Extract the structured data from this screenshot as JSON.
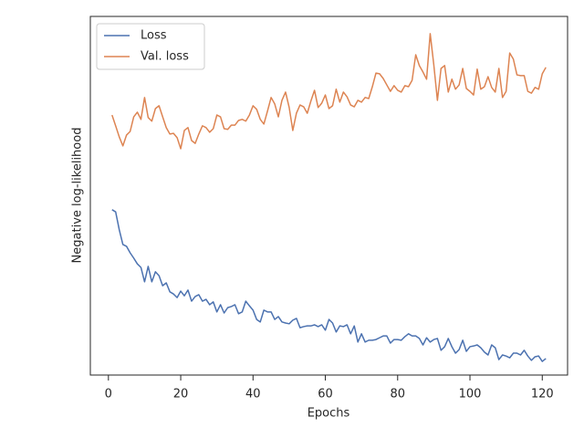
{
  "chart_data": {
    "type": "line",
    "x_label": "Epochs",
    "y_label": "Negative log-likelihood",
    "x": [
      1,
      2,
      3,
      4,
      5,
      6,
      7,
      8,
      9,
      10,
      11,
      12,
      13,
      14,
      15,
      16,
      17,
      18,
      19,
      20,
      21,
      22,
      23,
      24,
      25,
      26,
      27,
      28,
      29,
      30,
      31,
      32,
      33,
      34,
      35,
      36,
      37,
      38,
      39,
      40,
      41,
      42,
      43,
      44,
      45,
      46,
      47,
      48,
      49,
      50,
      51,
      52,
      53,
      54,
      55,
      56,
      57,
      58,
      59,
      60,
      61,
      62,
      63,
      64,
      65,
      66,
      67,
      68,
      69,
      70,
      71,
      72,
      73,
      74,
      75,
      76,
      77,
      78,
      79,
      80,
      81,
      82,
      83,
      84,
      85,
      86,
      87,
      88,
      89,
      90,
      91,
      92,
      93,
      94,
      95,
      96,
      97,
      98,
      99,
      100,
      101,
      102,
      103,
      104,
      105,
      106,
      107,
      108,
      109,
      110,
      111,
      112,
      113,
      114,
      115,
      116,
      117,
      118,
      119,
      120,
      121
    ],
    "series": [
      {
        "name": "Loss",
        "color": "#4c72b0",
        "values": [
          46.1,
          45.5,
          40.5,
          36.4,
          35.9,
          34.1,
          32.6,
          31.0,
          30.0,
          26.0,
          30.3,
          26.0,
          28.8,
          27.7,
          24.9,
          25.7,
          23.2,
          22.6,
          21.6,
          23.4,
          22.1,
          23.7,
          20.6,
          21.9,
          22.4,
          20.6,
          21.1,
          19.6,
          20.4,
          17.6,
          19.6,
          17.3,
          18.8,
          19.1,
          19.6,
          17.1,
          17.6,
          20.6,
          19.3,
          18.1,
          15.5,
          14.8,
          18.1,
          17.6,
          17.6,
          15.5,
          16.3,
          14.8,
          14.5,
          14.3,
          15.3,
          15.8,
          13.2,
          13.5,
          13.7,
          13.7,
          14.0,
          13.5,
          14.0,
          12.5,
          15.5,
          14.5,
          12.0,
          13.7,
          13.5,
          14.0,
          11.5,
          13.7,
          9.2,
          11.5,
          9.2,
          9.7,
          9.7,
          9.9,
          10.4,
          10.9,
          10.9,
          8.9,
          9.9,
          9.9,
          9.7,
          10.7,
          11.5,
          10.9,
          10.9,
          10.2,
          8.4,
          10.4,
          9.2,
          9.9,
          10.2,
          6.9,
          7.9,
          10.2,
          7.9,
          6.1,
          7.1,
          9.7,
          6.6,
          7.9,
          8.1,
          8.4,
          7.6,
          6.4,
          5.6,
          8.4,
          7.6,
          4.3,
          5.6,
          5.3,
          4.8,
          6.1,
          6.1,
          5.6,
          6.9,
          5.3,
          4.1,
          5.1,
          5.3,
          3.8,
          4.6
        ]
      },
      {
        "name": "Val. loss",
        "color": "#dd8452",
        "values": [
          72.5,
          69.5,
          66.4,
          63.9,
          66.9,
          67.9,
          72.0,
          73.3,
          71.3,
          77.4,
          71.8,
          70.8,
          74.3,
          75.1,
          72.0,
          69.0,
          67.2,
          67.4,
          66.2,
          63.1,
          68.2,
          69.0,
          65.4,
          64.6,
          67.2,
          69.5,
          69.0,
          67.7,
          68.7,
          72.5,
          72.0,
          68.7,
          68.5,
          69.7,
          69.7,
          71.0,
          71.3,
          70.8,
          72.5,
          75.1,
          74.1,
          71.3,
          70.0,
          73.6,
          77.4,
          75.6,
          72.0,
          76.6,
          78.9,
          74.6,
          68.2,
          73.0,
          75.3,
          74.8,
          73.0,
          76.4,
          79.4,
          74.6,
          75.8,
          78.1,
          74.3,
          75.1,
          79.7,
          76.1,
          78.9,
          77.6,
          75.3,
          74.8,
          76.6,
          76.1,
          77.4,
          77.1,
          80.4,
          84.2,
          84.0,
          82.7,
          80.9,
          79.1,
          80.7,
          79.4,
          78.9,
          80.7,
          80.4,
          82.2,
          89.3,
          86.3,
          84.5,
          82.5,
          95.2,
          86.5,
          76.6,
          85.5,
          86.3,
          78.9,
          82.5,
          79.7,
          80.9,
          85.5,
          79.9,
          79.1,
          78.1,
          85.3,
          79.7,
          80.4,
          83.2,
          80.2,
          78.9,
          85.5,
          77.4,
          79.1,
          89.8,
          88.1,
          83.7,
          83.5,
          83.5,
          79.1,
          78.6,
          80.2,
          79.7,
          84.0,
          85.8
        ]
      }
    ],
    "xlim": [
      -5,
      127
    ],
    "xticks": [
      0,
      20,
      40,
      60,
      80,
      100,
      120
    ],
    "ylim": [
      0,
      100
    ],
    "legend": "upper left"
  }
}
